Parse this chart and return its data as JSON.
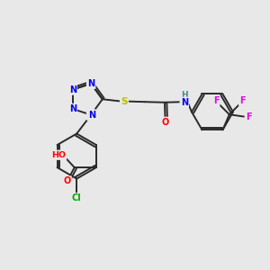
{
  "bg_color": "#e8e8e8",
  "bond_color": "#2a2a2a",
  "atom_colors": {
    "N": "#0000ee",
    "O": "#ff0000",
    "S": "#bbbb00",
    "Cl": "#00aa00",
    "F": "#ee00ee",
    "H": "#448888",
    "C": "#2a2a2a"
  },
  "figsize": [
    3.0,
    3.0
  ],
  "dpi": 100
}
